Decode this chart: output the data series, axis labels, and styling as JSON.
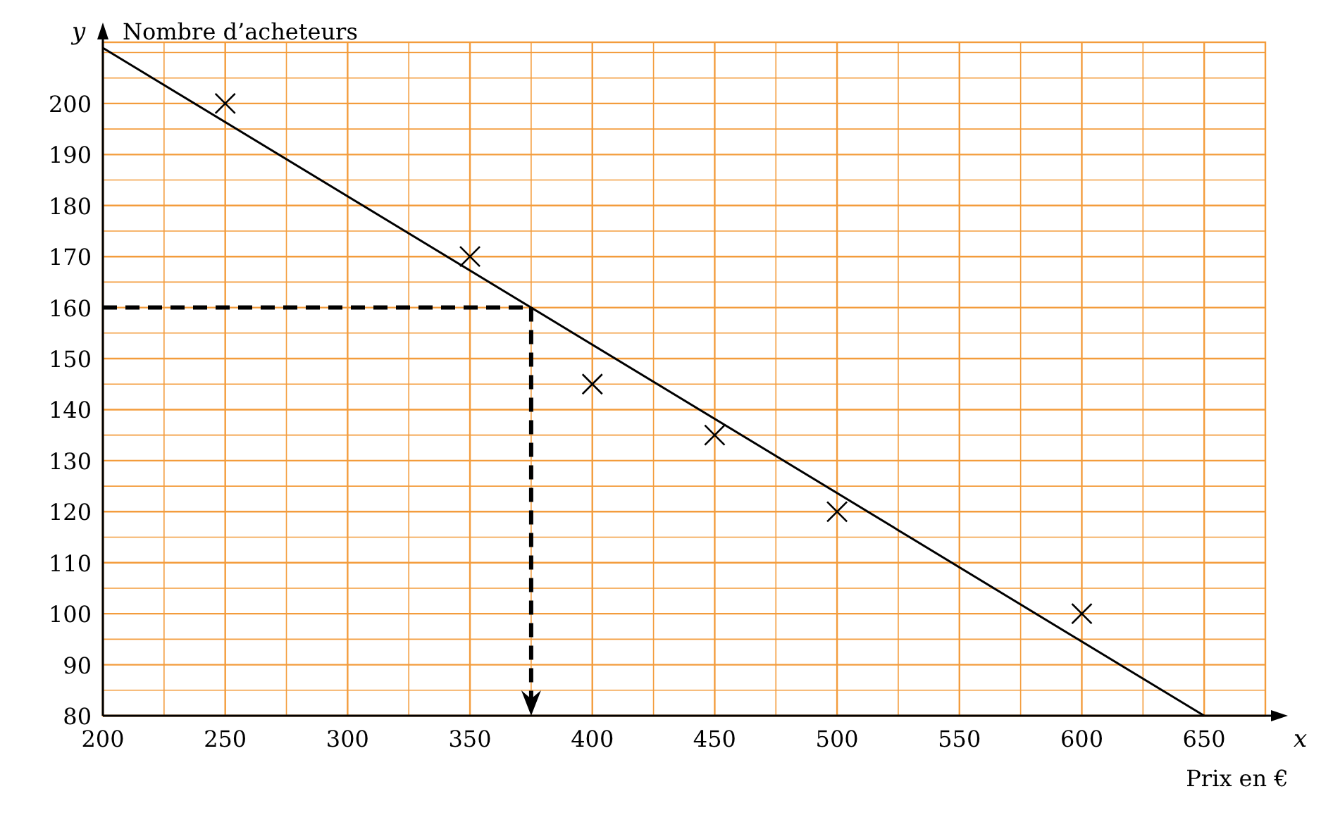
{
  "chart_data": {
    "type": "scatter",
    "xlabel": "Prix en €",
    "ylabel": "Nombre d’acheteurs",
    "annotations": [
      "x",
      "y"
    ],
    "xlim": [
      200,
      675
    ],
    "ylim": [
      80,
      212
    ],
    "xticks": [
      200,
      {
        "value": 225,
        "label": null
      },
      250,
      {
        "value": 275,
        "label": null
      },
      300,
      {
        "value": 325,
        "label": null
      },
      350,
      {
        "value": 375,
        "label": null
      },
      400,
      {
        "value": 425,
        "label": null
      },
      450,
      {
        "value": 475,
        "label": null
      },
      500,
      {
        "value": 525,
        "label": null
      },
      550,
      {
        "value": 575,
        "label": null
      },
      600,
      {
        "value": 625,
        "label": null
      },
      650,
      {
        "value": 675,
        "label": null
      }
    ],
    "yticks": [
      80,
      {
        "value": 85,
        "label": null
      },
      90,
      {
        "value": 95,
        "label": null
      },
      100,
      {
        "value": 105,
        "label": null
      },
      110,
      {
        "value": 115,
        "label": null
      },
      120,
      {
        "value": 125,
        "label": null
      },
      130,
      {
        "value": 135,
        "label": null
      },
      140,
      {
        "value": 145,
        "label": null
      },
      150,
      {
        "value": 155,
        "label": null
      },
      160,
      {
        "value": 165,
        "label": null
      },
      170,
      {
        "value": 175,
        "label": null
      },
      180,
      {
        "value": 185,
        "label": null
      },
      190,
      {
        "value": 195,
        "label": null
      },
      200,
      {
        "value": 205,
        "label": null
      },
      {
        "value": 210,
        "label": null
      }
    ],
    "grid": true,
    "ref_lines": [
      {
        "axis": "y",
        "value": 160,
        "color": "#000000",
        "line_style": "dashed"
      },
      {
        "axis": "x",
        "value": 375,
        "color": "#000000",
        "line_style": "dashed"
      }
    ],
    "series": [
      {
        "color": "#000000",
        "marker": "cross",
        "x": [
          250,
          350,
          400,
          450,
          500,
          600
        ],
        "values": [
          200,
          170,
          145,
          135,
          120,
          100
        ]
      },
      {
        "type": "line",
        "color": "#000000",
        "marker": "none",
        "line_style": "solid",
        "x": [
          200,
          650
        ],
        "values": [
          210.9,
          80
        ]
      }
    ]
  }
}
